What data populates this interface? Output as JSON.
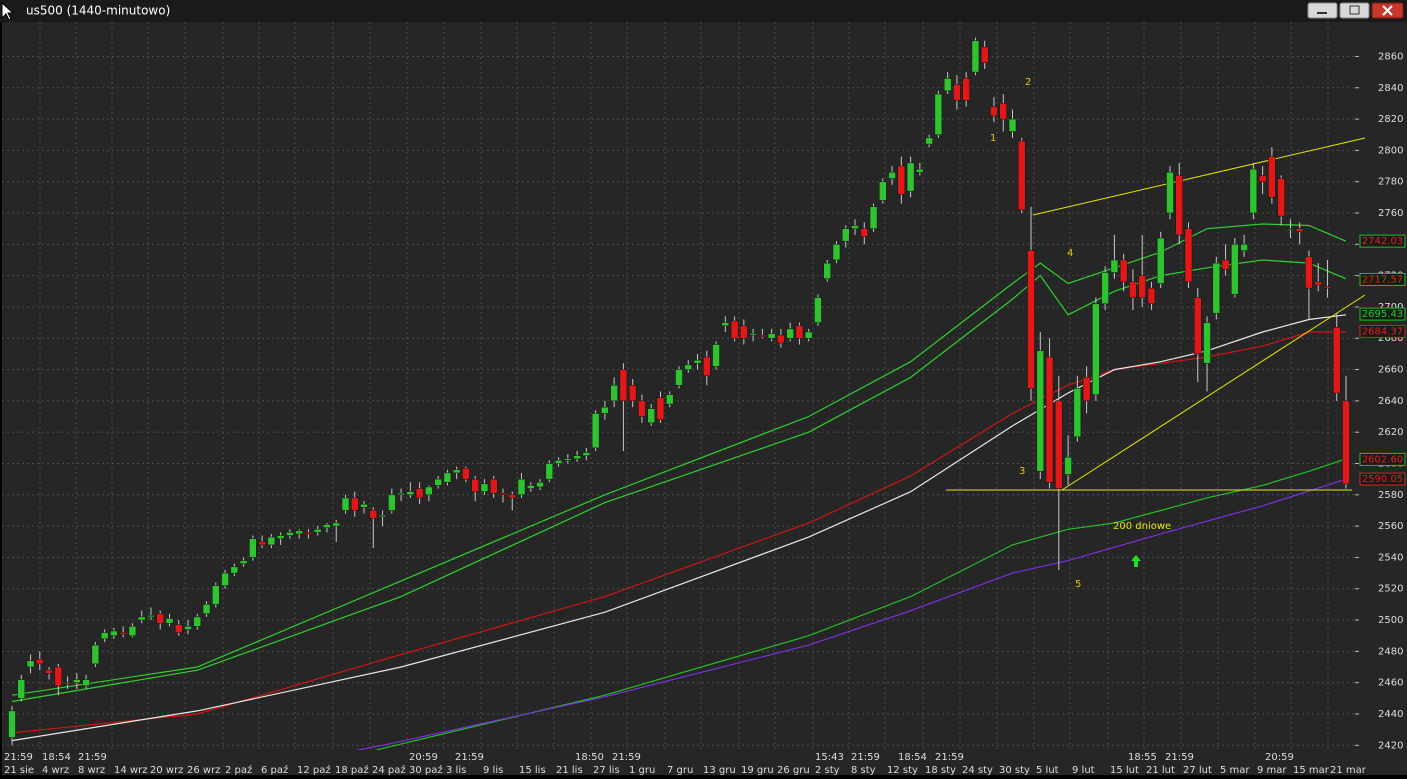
{
  "window": {
    "title": "us500 (1440-minutowo)"
  },
  "chart_data": {
    "type": "candlestick",
    "up_color": "#2fc42f",
    "down_color": "#e01818",
    "ylim": [
      2417,
      2882
    ],
    "yticks": [
      2420,
      2440,
      2460,
      2480,
      2500,
      2520,
      2540,
      2560,
      2580,
      2600,
      2620,
      2640,
      2660,
      2680,
      2700,
      2720,
      2740,
      2760,
      2780,
      2800,
      2820,
      2840,
      2860
    ],
    "grid": true,
    "x_labels_top": [
      "21:59",
      "18:54",
      "21:59",
      "20:59",
      "21:59",
      "18:50",
      "21:59",
      "15:43",
      "21:59",
      "18:54",
      "21:59",
      "18:55",
      "21:59",
      "20:59"
    ],
    "x_labels_bottom": [
      "21 sie",
      "4 wrz",
      "8 wrz",
      "14 wrz",
      "20 wrz",
      "26 wrz",
      "2 paź",
      "6 paź",
      "12 paź",
      "18 paź",
      "24 paź",
      "30 paź",
      "3 lis",
      "9 lis",
      "15 lis",
      "21 lis",
      "27 lis",
      "1 gru",
      "7 gru",
      "13 gru",
      "19 gru",
      "26 gru",
      "2 sty",
      "8 sty",
      "12 sty",
      "18 sty",
      "24 sty",
      "30 sty",
      "5 lut",
      "9 lut",
      "15 lut",
      "21 lut",
      "27 lut",
      "5 mar",
      "9 mar",
      "15 mar",
      "21 mar"
    ],
    "ohlc": [
      [
        2425,
        2445,
        2420,
        2442
      ],
      [
        2450,
        2465,
        2448,
        2462
      ],
      [
        2470,
        2478,
        2466,
        2474
      ],
      [
        2475,
        2480,
        2468,
        2472
      ],
      [
        2468,
        2470,
        2462,
        2466
      ],
      [
        2470,
        2472,
        2452,
        2458
      ],
      [
        2460,
        2464,
        2456,
        2459
      ],
      [
        2460,
        2466,
        2456,
        2462
      ],
      [
        2458,
        2465,
        2456,
        2462
      ],
      [
        2472,
        2486,
        2470,
        2484
      ],
      [
        2488,
        2494,
        2486,
        2492
      ],
      [
        2490,
        2495,
        2488,
        2493
      ],
      [
        2492,
        2496,
        2489,
        2491
      ],
      [
        2490,
        2498,
        2489,
        2496
      ],
      [
        2500,
        2506,
        2498,
        2502
      ],
      [
        2502,
        2508,
        2500,
        2503
      ],
      [
        2504,
        2506,
        2494,
        2498
      ],
      [
        2498,
        2504,
        2496,
        2501
      ],
      [
        2497,
        2500,
        2490,
        2492
      ],
      [
        2494,
        2500,
        2491,
        2496
      ],
      [
        2496,
        2504,
        2494,
        2502
      ],
      [
        2504,
        2512,
        2502,
        2510
      ],
      [
        2510,
        2524,
        2508,
        2522
      ],
      [
        2522,
        2532,
        2520,
        2530
      ],
      [
        2530,
        2536,
        2528,
        2534
      ],
      [
        2536,
        2540,
        2534,
        2538
      ],
      [
        2540,
        2554,
        2538,
        2552
      ],
      [
        2550,
        2554,
        2546,
        2548
      ],
      [
        2548,
        2555,
        2546,
        2553
      ],
      [
        2552,
        2556,
        2548,
        2554
      ],
      [
        2554,
        2558,
        2552,
        2556
      ],
      [
        2555,
        2558,
        2552,
        2557
      ],
      [
        2556,
        2558,
        2552,
        2555
      ],
      [
        2556,
        2560,
        2554,
        2558
      ],
      [
        2559,
        2562,
        2556,
        2561
      ],
      [
        2560,
        2564,
        2550,
        2562
      ],
      [
        2570,
        2580,
        2568,
        2578
      ],
      [
        2578,
        2582,
        2566,
        2570
      ],
      [
        2572,
        2576,
        2568,
        2574
      ],
      [
        2570,
        2572,
        2546,
        2565
      ],
      [
        2566,
        2570,
        2560,
        2567
      ],
      [
        2570,
        2584,
        2568,
        2580
      ],
      [
        2580,
        2584,
        2576,
        2581
      ],
      [
        2580,
        2588,
        2578,
        2582
      ],
      [
        2584,
        2588,
        2574,
        2578
      ],
      [
        2580,
        2586,
        2576,
        2585
      ],
      [
        2586,
        2592,
        2584,
        2590
      ],
      [
        2588,
        2596,
        2586,
        2594
      ],
      [
        2594,
        2598,
        2590,
        2596
      ],
      [
        2597,
        2598,
        2588,
        2590
      ],
      [
        2590,
        2592,
        2576,
        2582
      ],
      [
        2582,
        2590,
        2580,
        2587
      ],
      [
        2590,
        2592,
        2578,
        2581
      ],
      [
        2581,
        2584,
        2575,
        2580
      ],
      [
        2580,
        2582,
        2570,
        2578
      ],
      [
        2580,
        2594,
        2578,
        2590
      ],
      [
        2584,
        2588,
        2582,
        2586
      ],
      [
        2585,
        2590,
        2583,
        2588
      ],
      [
        2590,
        2602,
        2588,
        2600
      ],
      [
        2600,
        2604,
        2598,
        2602
      ],
      [
        2602,
        2606,
        2600,
        2603
      ],
      [
        2603,
        2608,
        2601,
        2605
      ],
      [
        2605,
        2610,
        2602,
        2607
      ],
      [
        2610,
        2634,
        2608,
        2632
      ],
      [
        2632,
        2640,
        2628,
        2636
      ],
      [
        2640,
        2655,
        2636,
        2650
      ],
      [
        2660,
        2664,
        2608,
        2640
      ],
      [
        2650,
        2654,
        2636,
        2640
      ],
      [
        2640,
        2644,
        2626,
        2630
      ],
      [
        2626,
        2638,
        2624,
        2635
      ],
      [
        2642,
        2646,
        2626,
        2628
      ],
      [
        2638,
        2646,
        2636,
        2644
      ],
      [
        2650,
        2662,
        2648,
        2660
      ],
      [
        2660,
        2666,
        2658,
        2663
      ],
      [
        2664,
        2670,
        2660,
        2666
      ],
      [
        2668,
        2672,
        2650,
        2656
      ],
      [
        2662,
        2678,
        2660,
        2676
      ],
      [
        2688,
        2694,
        2684,
        2690
      ],
      [
        2691,
        2694,
        2678,
        2680
      ],
      [
        2688,
        2692,
        2676,
        2680
      ],
      [
        2682,
        2686,
        2678,
        2683
      ],
      [
        2682,
        2686,
        2680,
        2681
      ],
      [
        2680,
        2686,
        2678,
        2683
      ],
      [
        2682,
        2686,
        2674,
        2677
      ],
      [
        2680,
        2690,
        2678,
        2686
      ],
      [
        2688,
        2690,
        2676,
        2680
      ],
      [
        2680,
        2686,
        2678,
        2684
      ],
      [
        2690,
        2708,
        2688,
        2706
      ],
      [
        2718,
        2730,
        2716,
        2728
      ],
      [
        2730,
        2742,
        2728,
        2740
      ],
      [
        2742,
        2752,
        2738,
        2750
      ],
      [
        2750,
        2756,
        2746,
        2752
      ],
      [
        2750,
        2754,
        2740,
        2745
      ],
      [
        2750,
        2766,
        2748,
        2764
      ],
      [
        2768,
        2782,
        2766,
        2780
      ],
      [
        2782,
        2790,
        2778,
        2786
      ],
      [
        2790,
        2796,
        2766,
        2772
      ],
      [
        2774,
        2796,
        2770,
        2792
      ],
      [
        2786,
        2792,
        2784,
        2788
      ],
      [
        2804,
        2810,
        2802,
        2808
      ],
      [
        2810,
        2838,
        2808,
        2836
      ],
      [
        2838,
        2850,
        2836,
        2846
      ],
      [
        2842,
        2848,
        2826,
        2832
      ],
      [
        2846,
        2850,
        2828,
        2832
      ],
      [
        2850,
        2872,
        2848,
        2870
      ],
      [
        2866,
        2870,
        2852,
        2856
      ],
      [
        2828,
        2834,
        2818,
        2822
      ],
      [
        2830,
        2836,
        2812,
        2820
      ],
      [
        2812,
        2826,
        2808,
        2820
      ],
      [
        2806,
        2808,
        2760,
        2762
      ],
      [
        2736,
        2764,
        2640,
        2648
      ],
      [
        2595,
        2684,
        2590,
        2672
      ],
      [
        2668,
        2680,
        2584,
        2588
      ],
      [
        2640,
        2656,
        2532,
        2584
      ],
      [
        2593,
        2618,
        2586,
        2604
      ],
      [
        2617,
        2656,
        2614,
        2648
      ],
      [
        2655,
        2662,
        2632,
        2640
      ],
      [
        2644,
        2706,
        2640,
        2702
      ],
      [
        2702,
        2726,
        2698,
        2722
      ],
      [
        2722,
        2746,
        2718,
        2730
      ],
      [
        2730,
        2734,
        2710,
        2716
      ],
      [
        2716,
        2724,
        2698,
        2706
      ],
      [
        2720,
        2746,
        2700,
        2706
      ],
      [
        2712,
        2716,
        2698,
        2702
      ],
      [
        2715,
        2748,
        2712,
        2744
      ],
      [
        2760,
        2790,
        2756,
        2786
      ],
      [
        2784,
        2792,
        2740,
        2746
      ],
      [
        2750,
        2754,
        2712,
        2716
      ],
      [
        2706,
        2712,
        2652,
        2670
      ],
      [
        2664,
        2694,
        2646,
        2690
      ],
      [
        2696,
        2732,
        2692,
        2728
      ],
      [
        2730,
        2740,
        2720,
        2724
      ],
      [
        2708,
        2744,
        2706,
        2740
      ],
      [
        2736,
        2746,
        2732,
        2740
      ],
      [
        2760,
        2792,
        2756,
        2788
      ],
      [
        2784,
        2790,
        2772,
        2780
      ],
      [
        2796,
        2802,
        2766,
        2770
      ],
      [
        2782,
        2784,
        2752,
        2758
      ],
      [
        2750,
        2756,
        2744,
        2750
      ],
      [
        2750,
        2754,
        2740,
        2748
      ],
      [
        2732,
        2736,
        2692,
        2712
      ],
      [
        2716,
        2728,
        2710,
        2714
      ],
      [
        2713,
        2730,
        2706,
        2712
      ],
      [
        2687,
        2696,
        2640,
        2645
      ],
      [
        2640,
        2656,
        2584,
        2587
      ]
    ],
    "series": [
      {
        "color": "#2fd02f",
        "x": [
          0,
          20,
          42,
          64,
          86,
          97,
          108,
          111,
          114,
          119,
          124,
          129,
          135,
          140,
          144
        ],
        "values": [
          2452,
          2470,
          2525,
          2580,
          2630,
          2665,
          2715,
          2728,
          2715,
          2725,
          2735,
          2750,
          2753,
          2752,
          2742
        ]
      },
      {
        "color": "#2fd02f",
        "x": [
          0,
          20,
          42,
          64,
          86,
          97,
          108,
          111,
          114,
          119,
          124,
          129,
          135,
          140,
          144
        ],
        "values": [
          2448,
          2468,
          2515,
          2575,
          2620,
          2655,
          2705,
          2720,
          2695,
          2710,
          2720,
          2725,
          2730,
          2728,
          2718
        ]
      },
      {
        "color": "#d01414",
        "x": [
          0,
          20,
          42,
          64,
          86,
          97,
          108,
          114,
          119,
          124,
          129,
          135,
          140,
          144
        ],
        "values": [
          2428,
          2440,
          2478,
          2515,
          2562,
          2592,
          2632,
          2650,
          2660,
          2664,
          2668,
          2675,
          2684,
          2684
        ]
      },
      {
        "color": "#e8e8e8",
        "x": [
          0,
          20,
          42,
          64,
          86,
          97,
          108,
          114,
          119,
          124,
          129,
          135,
          140,
          144
        ],
        "values": [
          2423,
          2442,
          2470,
          2505,
          2553,
          2582,
          2624,
          2645,
          2660,
          2665,
          2672,
          2684,
          2692,
          2695
        ]
      },
      {
        "color": "#22c022",
        "x": [
          35,
          40,
          64,
          86,
          97,
          108,
          114,
          119,
          124,
          129,
          135,
          140,
          144
        ],
        "values": [
          2410,
          2418,
          2452,
          2490,
          2515,
          2548,
          2558,
          2562,
          2570,
          2578,
          2586,
          2595,
          2603
        ]
      },
      {
        "color": "#7b30e0",
        "x": [
          33,
          40,
          64,
          86,
          97,
          108,
          114,
          124,
          135,
          144
        ],
        "values": [
          2412,
          2420,
          2451,
          2484,
          2506,
          2530,
          2538,
          2555,
          2573,
          2590
        ]
      }
    ],
    "price_labels": [
      {
        "value": 2742.03,
        "color": "#e02020",
        "border": "#20c020"
      },
      {
        "value": 2717.57,
        "color": "#e02020",
        "border": "#20c020"
      },
      {
        "value": 2695.43,
        "color": "#20d020",
        "border": "#20c020"
      },
      {
        "value": 2684.37,
        "color": "#e02020",
        "border": "#e02020"
      },
      {
        "value": 2602.6,
        "label": "2602.60",
        "color": "#e02020",
        "border": "#20c020"
      },
      {
        "value": 2590.05,
        "color": "#e02020",
        "border": "#e02020"
      }
    ],
    "annotations": [
      "1",
      "2",
      "3",
      "4",
      "5",
      "200 dniowe"
    ]
  }
}
